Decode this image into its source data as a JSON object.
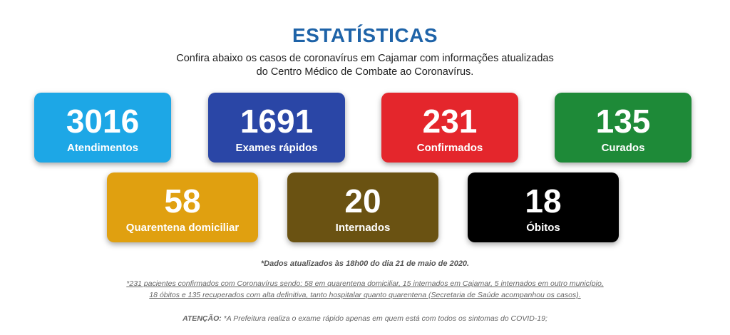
{
  "header": {
    "title": "ESTATÍSTICAS",
    "subtitle_line1": "Confira abaixo os casos de coronavírus em Cajamar com informações atualizadas",
    "subtitle_line2": "do Centro Médico de Combate ao Coronavírus."
  },
  "stats": [
    {
      "value": "3016",
      "label": "Atendimentos",
      "color": "#1da7e6"
    },
    {
      "value": "1691",
      "label": "Exames rápidos",
      "color": "#2a46a6"
    },
    {
      "value": "231",
      "label": "Confirmados",
      "color": "#e4262c"
    },
    {
      "value": "135",
      "label": "Curados",
      "color": "#1e8a38"
    },
    {
      "value": "58",
      "label": "Quarentena domiciliar",
      "color": "#e0a010"
    },
    {
      "value": "20",
      "label": "Internados",
      "color": "#6a5212"
    },
    {
      "value": "18",
      "label": "Óbitos",
      "color": "#000000"
    }
  ],
  "notes": {
    "updated": "*Dados atualizados às 18h00 do dia 21 de maio de 2020.",
    "footnote_line1": "*231 pacientes confirmados com Coronavírus sendo: 58 em quarentena domiciliar, 15 internados em Cajamar, 5 internados em outro município,",
    "footnote_line2": "18 óbitos e 135 recuperados com alta definitiva, tanto hospitalar quanto quarentena (Secretaria de Saúde acompanhou os casos).",
    "attention_label": "ATENÇÃO:",
    "attention_text": " *A Prefeitura realiza o exame rápido apenas em quem está com todos os sintomas do COVID-19;"
  }
}
